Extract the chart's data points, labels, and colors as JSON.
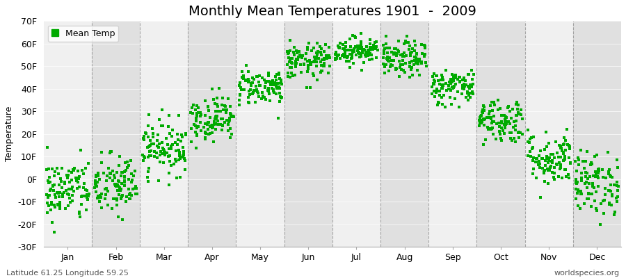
{
  "title": "Monthly Mean Temperatures 1901  -  2009",
  "ylabel": "Temperature",
  "footer_left": "Latitude 61.25 Longitude 59.25",
  "footer_right": "worldspecies.org",
  "legend_label": "Mean Temp",
  "ylim": [
    -30,
    70
  ],
  "ytick_labels": [
    "-30F",
    "-20F",
    "-10F",
    "0F",
    "10F",
    "20F",
    "30F",
    "40F",
    "50F",
    "60F",
    "70F"
  ],
  "ytick_values": [
    -30,
    -20,
    -10,
    0,
    10,
    20,
    30,
    40,
    50,
    60,
    70
  ],
  "months": [
    "Jan",
    "Feb",
    "Mar",
    "Apr",
    "May",
    "Jun",
    "Jul",
    "Aug",
    "Sep",
    "Oct",
    "Nov",
    "Dec"
  ],
  "month_means_f": [
    -5,
    -3,
    14,
    27,
    41,
    52,
    57,
    53,
    41,
    26,
    9,
    -2
  ],
  "month_stds_f": [
    7,
    7,
    6,
    5,
    4,
    4,
    3,
    4,
    4,
    5,
    6,
    7
  ],
  "n_years": 109,
  "dot_color": "#00aa00",
  "dot_size": 5,
  "fig_bg_color": "#ffffff",
  "plot_bg_color": "#f0f0f0",
  "alt_band_color": "#e0e0e0",
  "grid_line_color": "#888888",
  "title_fontsize": 14,
  "axis_fontsize": 9,
  "tick_fontsize": 9,
  "footer_fontsize": 8
}
